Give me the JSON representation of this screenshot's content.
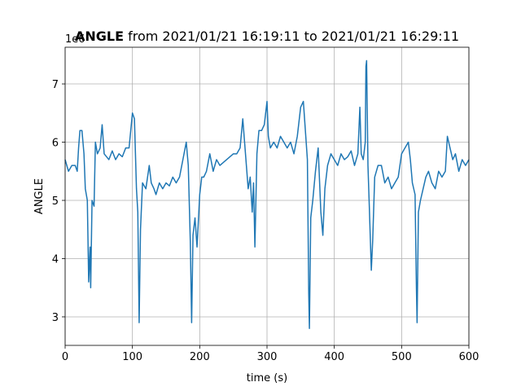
{
  "chart_data": {
    "type": "line",
    "title_bold": "ANGLE",
    "title": "from 2021/01/21 16:19:11 to 2021/01/21 16:29:11",
    "x_label": "time (s)",
    "y_label": "ANGLE",
    "y_offset_label": "1e6",
    "color": "#1f77b4",
    "grid": true,
    "xlim": [
      0,
      600
    ],
    "xticks": [
      0,
      100,
      200,
      300,
      400,
      500,
      600
    ],
    "ylim": [
      2.51,
      7.63
    ],
    "yticks": [
      3,
      4,
      5,
      6,
      7
    ],
    "x": [
      0,
      5,
      10,
      15,
      18,
      20,
      22,
      25,
      28,
      30,
      33,
      35,
      37,
      38,
      40,
      43,
      45,
      48,
      52,
      55,
      58,
      65,
      70,
      75,
      80,
      85,
      90,
      95,
      100,
      103,
      106,
      108,
      110,
      112,
      115,
      120,
      125,
      128,
      132,
      135,
      140,
      145,
      150,
      155,
      160,
      165,
      170,
      175,
      180,
      183,
      186,
      188,
      190,
      193,
      196,
      200,
      203,
      206,
      210,
      215,
      220,
      225,
      230,
      240,
      250,
      255,
      260,
      264,
      268,
      272,
      275,
      278,
      280,
      282,
      285,
      288,
      292,
      296,
      300,
      302,
      305,
      310,
      315,
      320,
      325,
      330,
      335,
      340,
      345,
      350,
      354,
      357,
      360,
      362,
      363,
      365,
      368,
      372,
      376,
      380,
      383,
      386,
      390,
      395,
      400,
      405,
      410,
      415,
      420,
      425,
      430,
      435,
      438,
      440,
      443,
      446,
      447,
      448,
      450,
      452,
      455,
      457,
      460,
      465,
      470,
      475,
      480,
      485,
      490,
      495,
      500,
      505,
      510,
      513,
      516,
      520,
      522,
      523,
      525,
      528,
      532,
      536,
      540,
      545,
      550,
      555,
      560,
      565,
      568,
      572,
      576,
      580,
      585,
      590,
      595,
      600
    ],
    "values": [
      5.7,
      5.5,
      5.6,
      5.6,
      5.5,
      5.9,
      6.2,
      6.2,
      5.8,
      5.2,
      5.0,
      3.6,
      4.2,
      3.5,
      5.0,
      4.9,
      6.0,
      5.8,
      5.9,
      6.3,
      5.8,
      5.7,
      5.85,
      5.7,
      5.8,
      5.75,
      5.9,
      5.9,
      6.5,
      6.4,
      5.2,
      4.8,
      2.9,
      4.5,
      5.3,
      5.2,
      5.6,
      5.3,
      5.2,
      5.1,
      5.3,
      5.2,
      5.3,
      5.25,
      5.4,
      5.3,
      5.4,
      5.7,
      6.0,
      5.6,
      4.3,
      2.9,
      4.4,
      4.7,
      4.2,
      5.1,
      5.4,
      5.4,
      5.5,
      5.8,
      5.5,
      5.7,
      5.6,
      5.7,
      5.8,
      5.8,
      5.9,
      6.4,
      5.8,
      5.2,
      5.4,
      4.8,
      5.3,
      4.2,
      5.8,
      6.2,
      6.2,
      6.3,
      6.7,
      6.1,
      5.9,
      6.0,
      5.9,
      6.1,
      6.0,
      5.9,
      6.0,
      5.8,
      6.1,
      6.6,
      6.7,
      6.2,
      5.7,
      3.4,
      2.8,
      4.7,
      5.0,
      5.5,
      5.9,
      4.8,
      4.4,
      5.2,
      5.6,
      5.8,
      5.7,
      5.6,
      5.8,
      5.7,
      5.75,
      5.85,
      5.6,
      5.8,
      6.6,
      5.8,
      5.7,
      6.0,
      7.3,
      7.4,
      5.6,
      4.9,
      3.8,
      4.3,
      5.4,
      5.6,
      5.6,
      5.3,
      5.4,
      5.2,
      5.3,
      5.4,
      5.8,
      5.9,
      6.0,
      5.7,
      5.3,
      5.1,
      3.5,
      2.9,
      4.8,
      5.0,
      5.2,
      5.4,
      5.5,
      5.3,
      5.2,
      5.5,
      5.4,
      5.5,
      6.1,
      5.9,
      5.7,
      5.8,
      5.5,
      5.7,
      5.6,
      5.7
    ]
  }
}
